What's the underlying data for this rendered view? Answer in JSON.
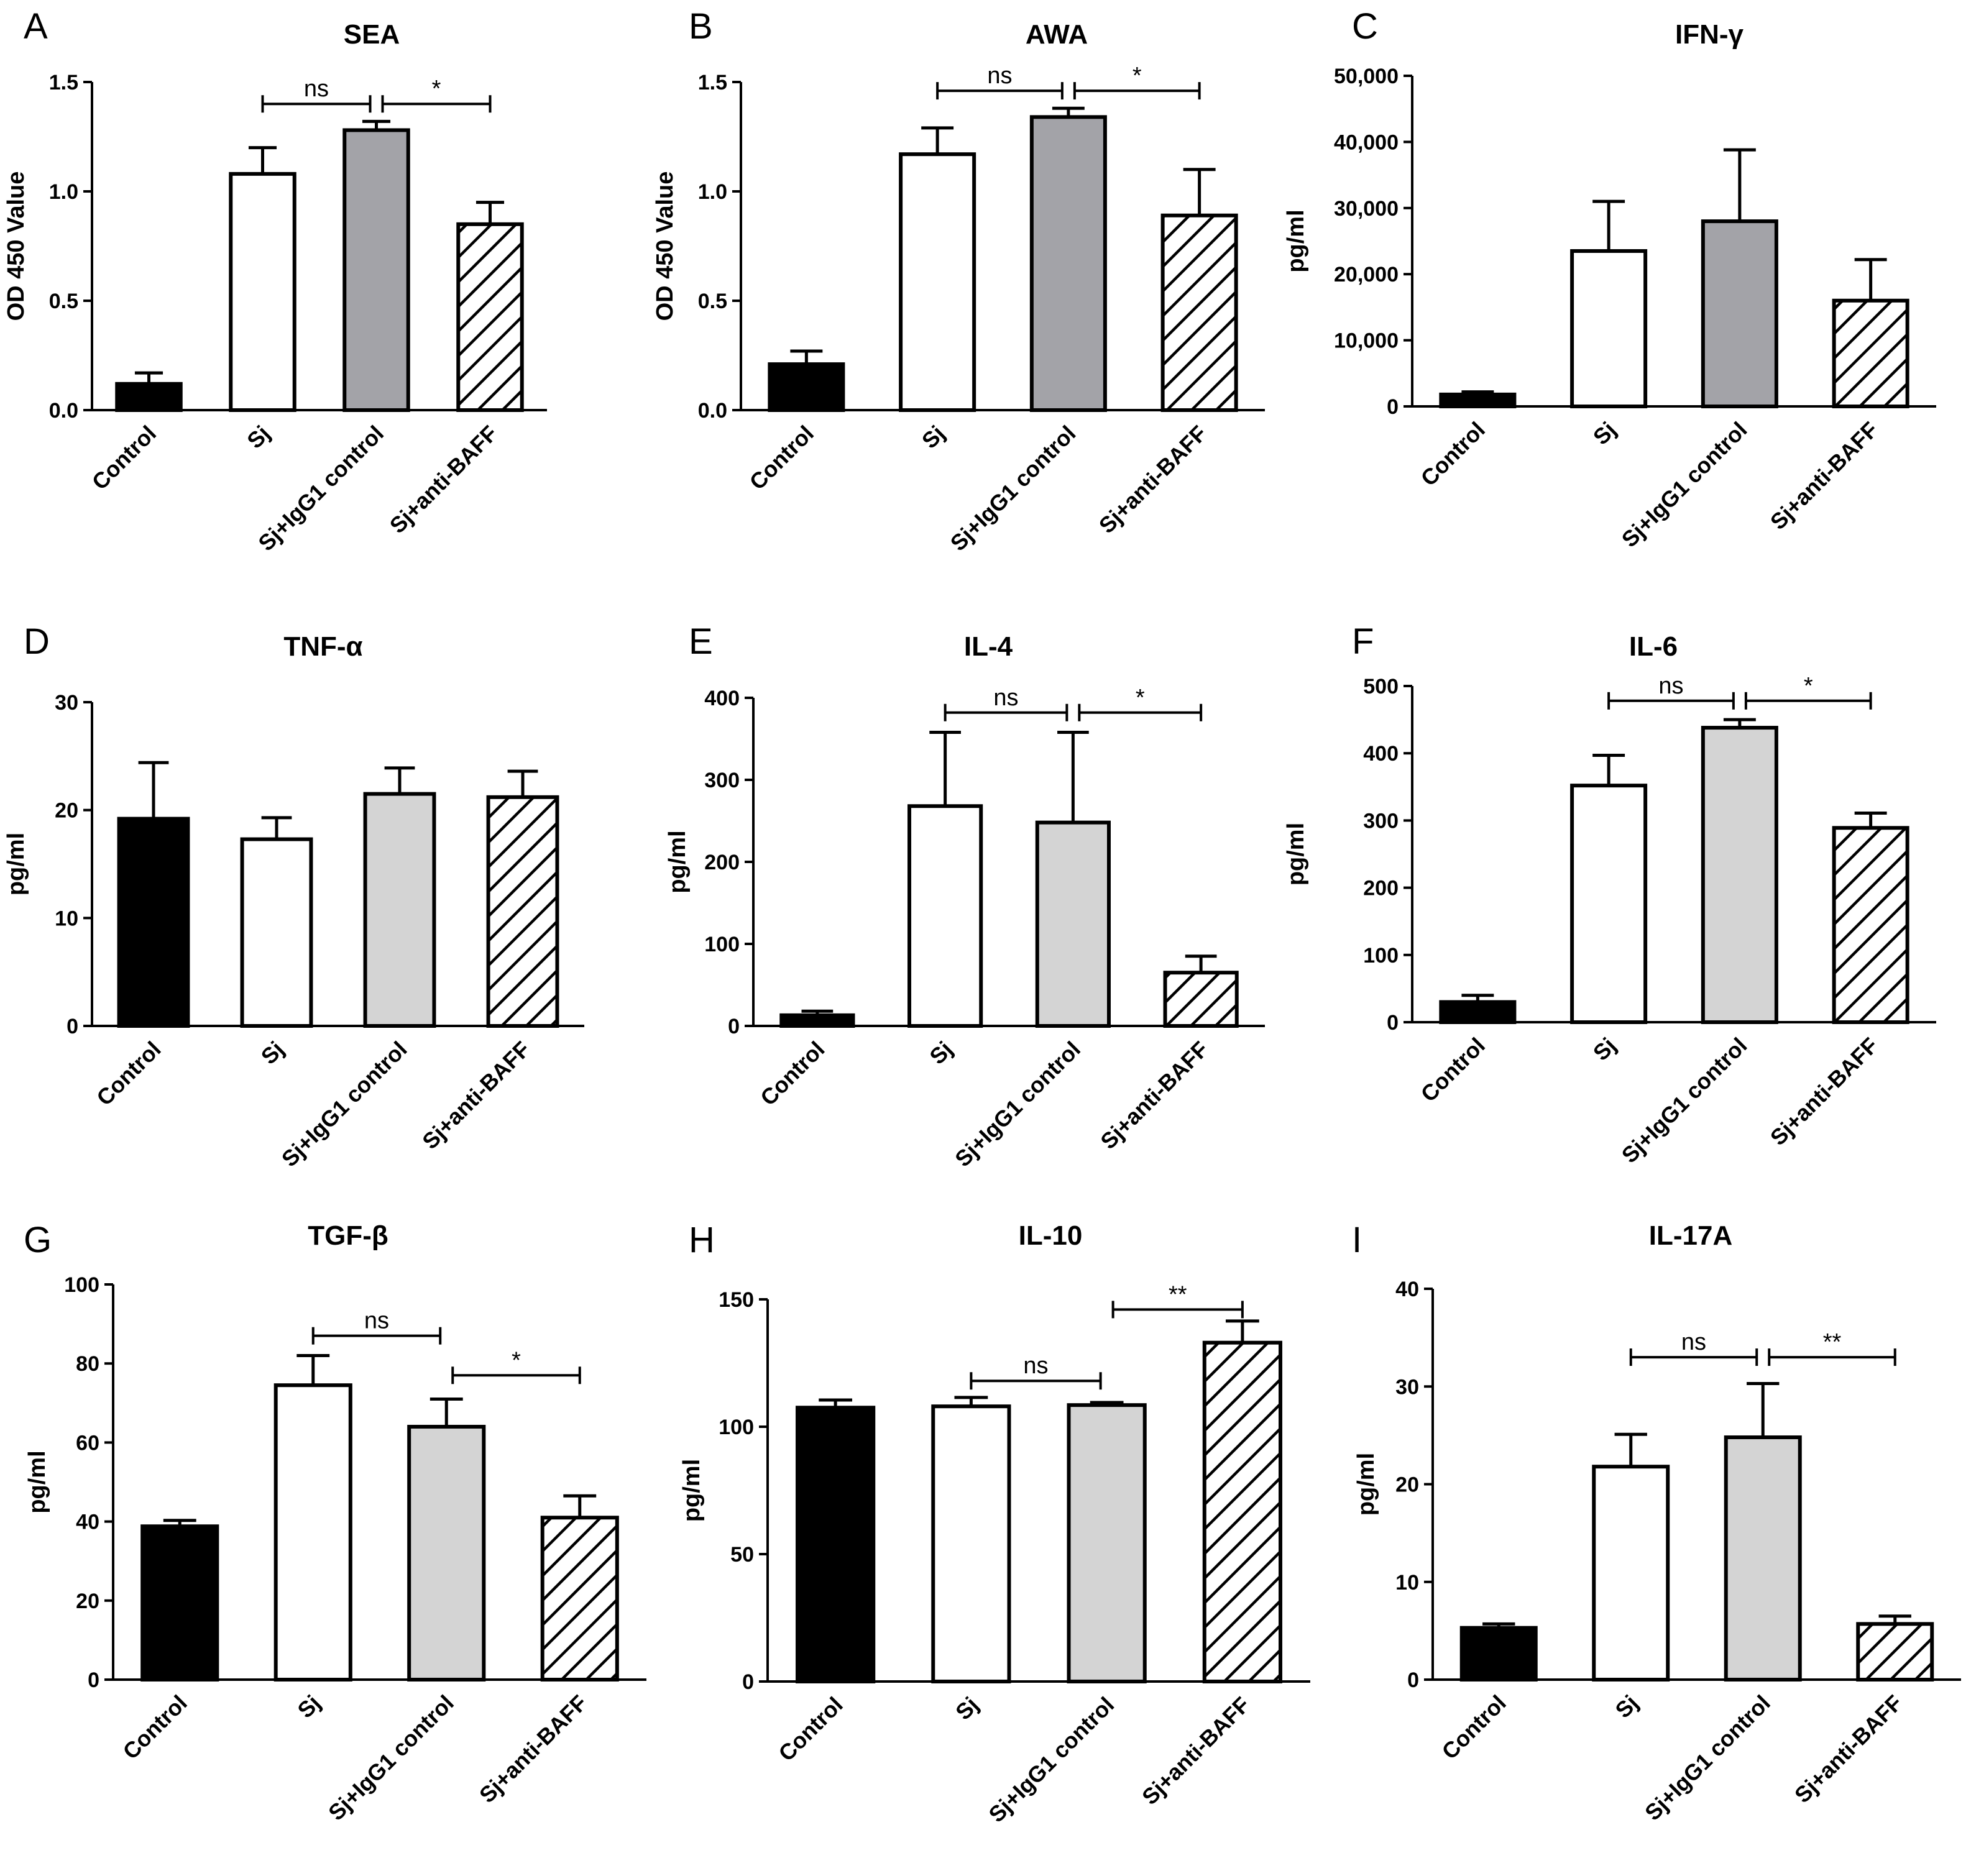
{
  "categories": [
    "Control",
    "Sj",
    "Sj+IgG1 control",
    "Sj+anti-BAFF"
  ],
  "fills": [
    "#000000",
    "#ffffff",
    "#a3a3a8",
    "hatch"
  ],
  "fills_light": [
    "#000000",
    "#ffffff",
    "#d4d4d4",
    "hatch"
  ],
  "chart_data": [
    {
      "type": "bar",
      "letter": "A",
      "title": "SEA",
      "ylabel": "OD 450 Value",
      "ylim": [
        0,
        1.5
      ],
      "yticks": [
        "0.0",
        "0.5",
        "1.0",
        "1.5"
      ],
      "ytick_values": [
        0,
        0.5,
        1.0,
        1.5
      ],
      "categories": [
        "Control",
        "Sj",
        "Sj+IgG1 control",
        "Sj+anti-BAFF"
      ],
      "values": [
        0.12,
        1.08,
        1.28,
        0.85
      ],
      "errors": [
        0.05,
        0.12,
        0.04,
        0.1
      ],
      "palette": "dark",
      "significance": [
        {
          "from": 1,
          "to": 2,
          "label": "ns",
          "y": 1.4
        },
        {
          "from": 2,
          "to": 3,
          "label": "*",
          "y": 1.4
        }
      ]
    },
    {
      "type": "bar",
      "letter": "B",
      "title": "AWA",
      "ylabel": "OD 450 Value",
      "ylim": [
        0,
        1.5
      ],
      "yticks": [
        "0.0",
        "0.5",
        "1.0",
        "1.5"
      ],
      "ytick_values": [
        0,
        0.5,
        1.0,
        1.5
      ],
      "categories": [
        "Control",
        "Sj",
        "Sj+IgG1 control",
        "Sj+anti-BAFF"
      ],
      "values": [
        0.21,
        1.17,
        1.34,
        0.89
      ],
      "errors": [
        0.06,
        0.12,
        0.04,
        0.21
      ],
      "palette": "dark",
      "significance": [
        {
          "from": 1,
          "to": 2,
          "label": "ns",
          "y": 1.46
        },
        {
          "from": 2,
          "to": 3,
          "label": "*",
          "y": 1.46
        }
      ]
    },
    {
      "type": "bar",
      "letter": "C",
      "title": "IFN-γ",
      "ylabel": "pg/ml",
      "ylim": [
        0,
        50000
      ],
      "yticks": [
        "0",
        "10,000",
        "20,000",
        "30,000",
        "40,000",
        "50,000"
      ],
      "ytick_values": [
        0,
        10000,
        20000,
        30000,
        40000,
        50000
      ],
      "categories": [
        "Control",
        "Sj",
        "Sj+IgG1 control",
        "Sj+anti-BAFF"
      ],
      "values": [
        1800,
        23500,
        28000,
        16000
      ],
      "errors": [
        400,
        7500,
        10800,
        6200
      ],
      "palette": "dark",
      "significance": []
    },
    {
      "type": "bar",
      "letter": "D",
      "title": "TNF-α",
      "ylabel": "pg/ml",
      "ylim": [
        0,
        30
      ],
      "yticks": [
        "0",
        "10",
        "20",
        "30"
      ],
      "ytick_values": [
        0,
        10,
        20,
        30
      ],
      "categories": [
        "Control",
        "Sj",
        "Sj+IgG1 control",
        "Sj+anti-BAFF"
      ],
      "values": [
        19.2,
        17.3,
        21.5,
        21.2
      ],
      "errors": [
        5.2,
        2.0,
        2.4,
        2.4
      ],
      "palette": "light",
      "significance": []
    },
    {
      "type": "bar",
      "letter": "E",
      "title": "IL-4",
      "ylabel": "pg/ml",
      "ylim": [
        0,
        400
      ],
      "yticks": [
        "0",
        "100",
        "200",
        "300",
        "400"
      ],
      "ytick_values": [
        0,
        100,
        200,
        300,
        400
      ],
      "categories": [
        "Control",
        "Sj",
        "Sj+IgG1 control",
        "Sj+anti-BAFF"
      ],
      "values": [
        13,
        268,
        248,
        65
      ],
      "errors": [
        5,
        90,
        110,
        20
      ],
      "palette": "light",
      "significance": [
        {
          "from": 1,
          "to": 2,
          "label": "ns",
          "y": 382
        },
        {
          "from": 2,
          "to": 3,
          "label": "*",
          "y": 382
        }
      ]
    },
    {
      "type": "bar",
      "letter": "F",
      "title": "IL-6",
      "ylabel": "pg/ml",
      "ylim": [
        0,
        500
      ],
      "yticks": [
        "0",
        "100",
        "200",
        "300",
        "400",
        "500"
      ],
      "ytick_values": [
        0,
        100,
        200,
        300,
        400,
        500
      ],
      "categories": [
        "Control",
        "Sj",
        "Sj+IgG1 control",
        "Sj+anti-BAFF"
      ],
      "values": [
        30,
        352,
        438,
        289
      ],
      "errors": [
        10,
        45,
        12,
        22
      ],
      "palette": "light",
      "significance": [
        {
          "from": 1,
          "to": 2,
          "label": "ns",
          "y": 478
        },
        {
          "from": 2,
          "to": 3,
          "label": "*",
          "y": 478
        }
      ]
    },
    {
      "type": "bar",
      "letter": "G",
      "title": "TGF-β",
      "ylabel": "pg/ml",
      "ylim": [
        0,
        100
      ],
      "yticks": [
        "0",
        "20",
        "40",
        "60",
        "80",
        "100"
      ],
      "ytick_values": [
        0,
        20,
        40,
        60,
        80,
        100
      ],
      "categories": [
        "Control",
        "Sj",
        "Sj+IgG1 control",
        "Sj+anti-BAFF"
      ],
      "values": [
        38.8,
        74.5,
        64,
        41
      ],
      "errors": [
        1.5,
        7.5,
        7.0,
        5.5
      ],
      "palette": "light",
      "significance": [
        {
          "from": 1,
          "to": 2,
          "label": "ns",
          "y": 87
        },
        {
          "from": 2,
          "to": 3,
          "label": "*",
          "y": 77
        }
      ]
    },
    {
      "type": "bar",
      "letter": "H",
      "title": "IL-10",
      "ylabel": "pg/ml",
      "ylim": [
        0,
        150
      ],
      "yticks": [
        "0",
        "50",
        "100",
        "150"
      ],
      "ytick_values": [
        0,
        50,
        100,
        150
      ],
      "categories": [
        "Control",
        "Sj",
        "Sj+IgG1 control",
        "Sj+anti-BAFF"
      ],
      "values": [
        107.5,
        108,
        108.5,
        133
      ],
      "errors": [
        3,
        3.5,
        1,
        8.5
      ],
      "palette": "light",
      "significance": [
        {
          "from": 1,
          "to": 2,
          "label": "ns",
          "y": 118
        },
        {
          "from": 2,
          "to": 3,
          "label": "**",
          "y": 146
        }
      ]
    },
    {
      "type": "bar",
      "letter": "I",
      "title": "IL-17A",
      "ylabel": "pg/ml",
      "ylim": [
        0,
        40
      ],
      "yticks": [
        "0",
        "10",
        "20",
        "30",
        "40"
      ],
      "ytick_values": [
        0,
        10,
        20,
        30,
        40
      ],
      "categories": [
        "Control",
        "Sj",
        "Sj+IgG1 control",
        "Sj+anti-BAFF"
      ],
      "values": [
        5.3,
        21.8,
        24.8,
        5.7
      ],
      "errors": [
        0.4,
        3.3,
        5.5,
        0.8
      ],
      "palette": "light",
      "significance": [
        {
          "from": 1,
          "to": 2,
          "label": "ns",
          "y": 33
        },
        {
          "from": 2,
          "to": 3,
          "label": "**",
          "y": 33
        }
      ]
    }
  ]
}
